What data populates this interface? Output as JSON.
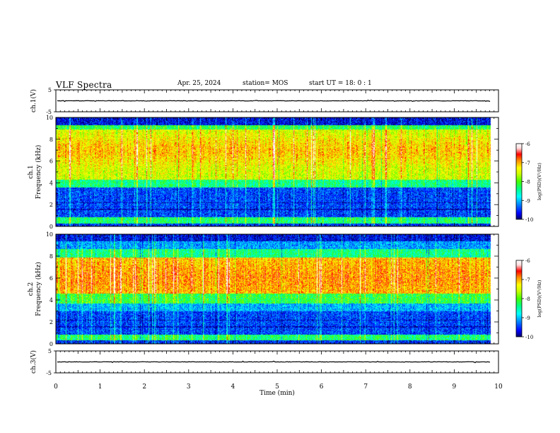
{
  "header": {
    "title": "VLF Spectra",
    "date": "Apr. 25, 2024",
    "station": "station= MOS",
    "start_ut": "start  UT  =   18: 0  : 1"
  },
  "colors": {
    "colorbar": [
      "#000066",
      "#0000ff",
      "#0088ff",
      "#00ffff",
      "#00ff88",
      "#44ff00",
      "#ccff00",
      "#ffff00",
      "#ff8800",
      "#ff0000",
      "#ffdddd",
      "#ffffff"
    ]
  },
  "chart_data": [
    {
      "type": "line",
      "panel": "ch1-waveform",
      "ylabel": "ch.1(V)",
      "ylim": [
        -5,
        5
      ],
      "yticks": [
        "5",
        "-5"
      ],
      "baseline": 0,
      "xlim": [
        0,
        10
      ]
    },
    {
      "type": "heatmap",
      "panel": "ch1-spectrogram",
      "ylabel_lines": [
        "ch.1",
        "Frequency (kHz)"
      ],
      "ylim": [
        0,
        10
      ],
      "yticks": [
        "0",
        "2",
        "4",
        "6",
        "8",
        "10"
      ],
      "xlim": [
        0,
        10
      ],
      "data_end_min": 9.83,
      "intensity_peak_khz": 7.0,
      "colorbar": {
        "label": "log(PSD)(V²/Hz)",
        "ticks": [
          "-6",
          "-7",
          "-8",
          "-9",
          "-10"
        ],
        "range": [
          -10,
          -6
        ]
      }
    },
    {
      "type": "heatmap",
      "panel": "ch2-spectrogram",
      "ylabel_lines": [
        "ch.2",
        "Frequency (kHz)"
      ],
      "ylim": [
        0,
        10
      ],
      "yticks": [
        "0",
        "2",
        "4",
        "6",
        "8",
        "10"
      ],
      "xlim": [
        0,
        10
      ],
      "data_end_min": 9.83,
      "intensity_peak_khz": 6.0,
      "colorbar": {
        "label": "log(PSD)(V²/Hz)",
        "ticks": [
          "-6",
          "-7",
          "-8",
          "-9",
          "-10"
        ],
        "range": [
          -10,
          -6
        ]
      }
    },
    {
      "type": "line",
      "panel": "ch3-waveform",
      "ylabel": "ch.3(V)",
      "ylim": [
        -5,
        5
      ],
      "yticks": [
        "5",
        "-5"
      ],
      "baseline": 0,
      "xlim": [
        0,
        10
      ],
      "xlabel": "Time  (min)",
      "xticks": [
        "0",
        "1",
        "2",
        "3",
        "4",
        "5",
        "6",
        "7",
        "8",
        "9",
        "10"
      ]
    }
  ]
}
